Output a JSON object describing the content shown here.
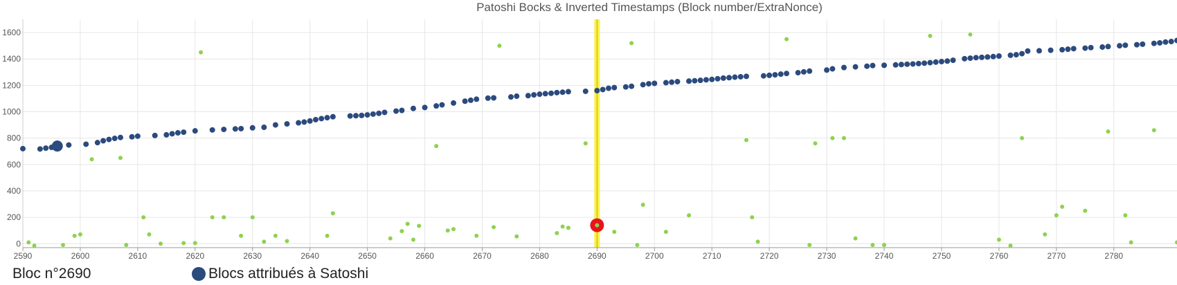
{
  "chart_data": {
    "type": "scatter",
    "title": "Patoshi Bocks & Inverted Timestamps (Block number/ExtraNonce)",
    "xlabel": "",
    "ylabel": "",
    "xlim": [
      2590,
      2791
    ],
    "ylim": [
      -30,
      1700
    ],
    "x_ticks": [
      2590,
      2600,
      2610,
      2620,
      2630,
      2640,
      2650,
      2660,
      2670,
      2680,
      2690,
      2700,
      2710,
      2720,
      2730,
      2740,
      2750,
      2760,
      2770,
      2780
    ],
    "y_ticks": [
      0,
      200,
      400,
      600,
      800,
      1000,
      1200,
      1400,
      1600
    ],
    "grid": true,
    "legend": "bottom-left",
    "colors": {
      "satoshi": "#2b4a7e",
      "other": "#8fd14f",
      "highlight_band": "#f7f24a",
      "highlight_line": "#d9a400",
      "highlight_marker": "#e8141b"
    },
    "highlight": {
      "block": 2690,
      "y": 140
    },
    "footer": {
      "bloc_label": "Bloc n°2690",
      "legend_label": "Blocs attribués à Satoshi"
    },
    "series": [
      {
        "name": "Blocs attribués à Satoshi",
        "points": [
          [
            2590,
            720
          ],
          [
            2593,
            718
          ],
          [
            2594,
            724
          ],
          [
            2595,
            730
          ],
          [
            2596,
            740
          ],
          [
            2598,
            748
          ],
          [
            2601,
            754
          ],
          [
            2603,
            766
          ],
          [
            2604,
            780
          ],
          [
            2605,
            790
          ],
          [
            2606,
            798
          ],
          [
            2607,
            805
          ],
          [
            2609,
            810
          ],
          [
            2610,
            815
          ],
          [
            2613,
            820
          ],
          [
            2615,
            825
          ],
          [
            2616,
            833
          ],
          [
            2617,
            840
          ],
          [
            2618,
            845
          ],
          [
            2620,
            855
          ],
          [
            2623,
            862
          ],
          [
            2625,
            866
          ],
          [
            2627,
            870
          ],
          [
            2628,
            872
          ],
          [
            2630,
            878
          ],
          [
            2632,
            882
          ],
          [
            2634,
            900
          ],
          [
            2636,
            908
          ],
          [
            2638,
            916
          ],
          [
            2639,
            922
          ],
          [
            2640,
            930
          ],
          [
            2641,
            940
          ],
          [
            2642,
            948
          ],
          [
            2643,
            955
          ],
          [
            2644,
            962
          ],
          [
            2647,
            968
          ],
          [
            2648,
            970
          ],
          [
            2649,
            972
          ],
          [
            2650,
            976
          ],
          [
            2651,
            982
          ],
          [
            2652,
            988
          ],
          [
            2653,
            995
          ],
          [
            2655,
            1005
          ],
          [
            2656,
            1010
          ],
          [
            2658,
            1025
          ],
          [
            2660,
            1032
          ],
          [
            2662,
            1044
          ],
          [
            2663,
            1052
          ],
          [
            2665,
            1066
          ],
          [
            2667,
            1080
          ],
          [
            2668,
            1087
          ],
          [
            2669,
            1095
          ],
          [
            2671,
            1103
          ],
          [
            2672,
            1105
          ],
          [
            2675,
            1112
          ],
          [
            2676,
            1118
          ],
          [
            2678,
            1122
          ],
          [
            2679,
            1128
          ],
          [
            2680,
            1133
          ],
          [
            2681,
            1137
          ],
          [
            2682,
            1140
          ],
          [
            2683,
            1145
          ],
          [
            2684,
            1148
          ],
          [
            2685,
            1152
          ],
          [
            2688,
            1155
          ],
          [
            2690,
            1160
          ],
          [
            2691,
            1168
          ],
          [
            2692,
            1178
          ],
          [
            2693,
            1183
          ],
          [
            2695,
            1188
          ],
          [
            2696,
            1193
          ],
          [
            2698,
            1205
          ],
          [
            2699,
            1212
          ],
          [
            2700,
            1215
          ],
          [
            2702,
            1220
          ],
          [
            2703,
            1224
          ],
          [
            2704,
            1228
          ],
          [
            2706,
            1232
          ],
          [
            2707,
            1235
          ],
          [
            2708,
            1238
          ],
          [
            2709,
            1242
          ],
          [
            2710,
            1245
          ],
          [
            2711,
            1250
          ],
          [
            2712,
            1255
          ],
          [
            2713,
            1258
          ],
          [
            2714,
            1262
          ],
          [
            2715,
            1265
          ],
          [
            2716,
            1268
          ],
          [
            2719,
            1272
          ],
          [
            2720,
            1276
          ],
          [
            2721,
            1280
          ],
          [
            2722,
            1285
          ],
          [
            2723,
            1290
          ],
          [
            2725,
            1296
          ],
          [
            2726,
            1302
          ],
          [
            2727,
            1308
          ],
          [
            2730,
            1316
          ],
          [
            2731,
            1325
          ],
          [
            2733,
            1335
          ],
          [
            2735,
            1340
          ],
          [
            2737,
            1345
          ],
          [
            2738,
            1350
          ],
          [
            2740,
            1352
          ],
          [
            2742,
            1355
          ],
          [
            2743,
            1358
          ],
          [
            2744,
            1360
          ],
          [
            2745,
            1362
          ],
          [
            2746,
            1365
          ],
          [
            2747,
            1368
          ],
          [
            2748,
            1372
          ],
          [
            2749,
            1376
          ],
          [
            2750,
            1380
          ],
          [
            2751,
            1384
          ],
          [
            2752,
            1390
          ],
          [
            2754,
            1402
          ],
          [
            2755,
            1406
          ],
          [
            2756,
            1410
          ],
          [
            2757,
            1412
          ],
          [
            2758,
            1415
          ],
          [
            2759,
            1418
          ],
          [
            2760,
            1422
          ],
          [
            2762,
            1428
          ],
          [
            2763,
            1432
          ],
          [
            2764,
            1440
          ],
          [
            2765,
            1460
          ],
          [
            2767,
            1462
          ],
          [
            2769,
            1466
          ],
          [
            2771,
            1470
          ],
          [
            2772,
            1474
          ],
          [
            2773,
            1478
          ],
          [
            2775,
            1482
          ],
          [
            2776,
            1486
          ],
          [
            2778,
            1490
          ],
          [
            2779,
            1494
          ],
          [
            2781,
            1500
          ],
          [
            2782,
            1504
          ],
          [
            2784,
            1508
          ],
          [
            2785,
            1512
          ],
          [
            2787,
            1518
          ],
          [
            2788,
            1522
          ],
          [
            2789,
            1528
          ],
          [
            2790,
            1532
          ],
          [
            2791,
            1540
          ]
        ]
      },
      {
        "name": "",
        "points": [
          [
            2591,
            10
          ],
          [
            2592,
            -15
          ],
          [
            2597,
            -10
          ],
          [
            2599,
            60
          ],
          [
            2600,
            70
          ],
          [
            2602,
            640
          ],
          [
            2607,
            650
          ],
          [
            2608,
            -10
          ],
          [
            2611,
            200
          ],
          [
            2612,
            70
          ],
          [
            2614,
            0
          ],
          [
            2618,
            5
          ],
          [
            2620,
            5
          ],
          [
            2621,
            1450
          ],
          [
            2623,
            200
          ],
          [
            2625,
            200
          ],
          [
            2628,
            60
          ],
          [
            2630,
            200
          ],
          [
            2632,
            15
          ],
          [
            2634,
            60
          ],
          [
            2636,
            20
          ],
          [
            2643,
            60
          ],
          [
            2644,
            230
          ],
          [
            2654,
            40
          ],
          [
            2656,
            95
          ],
          [
            2657,
            150
          ],
          [
            2658,
            30
          ],
          [
            2659,
            135
          ],
          [
            2662,
            740
          ],
          [
            2664,
            100
          ],
          [
            2665,
            110
          ],
          [
            2669,
            60
          ],
          [
            2672,
            125
          ],
          [
            2673,
            1500
          ],
          [
            2676,
            55
          ],
          [
            2683,
            80
          ],
          [
            2684,
            130
          ],
          [
            2685,
            120
          ],
          [
            2688,
            760
          ],
          [
            2690,
            140
          ],
          [
            2693,
            90
          ],
          [
            2696,
            1520
          ],
          [
            2697,
            -10
          ],
          [
            2698,
            295
          ],
          [
            2702,
            90
          ],
          [
            2706,
            215
          ],
          [
            2716,
            785
          ],
          [
            2717,
            200
          ],
          [
            2718,
            15
          ],
          [
            2723,
            1550
          ],
          [
            2727,
            -10
          ],
          [
            2728,
            760
          ],
          [
            2731,
            800
          ],
          [
            2733,
            800
          ],
          [
            2735,
            40
          ],
          [
            2738,
            -10
          ],
          [
            2740,
            -10
          ],
          [
            2748,
            1575
          ],
          [
            2755,
            1585
          ],
          [
            2760,
            30
          ],
          [
            2762,
            -15
          ],
          [
            2764,
            800
          ],
          [
            2768,
            70
          ],
          [
            2770,
            215
          ],
          [
            2771,
            280
          ],
          [
            2775,
            250
          ],
          [
            2779,
            850
          ],
          [
            2782,
            215
          ],
          [
            2783,
            10
          ],
          [
            2787,
            860
          ],
          [
            2791,
            10
          ]
        ]
      }
    ]
  }
}
